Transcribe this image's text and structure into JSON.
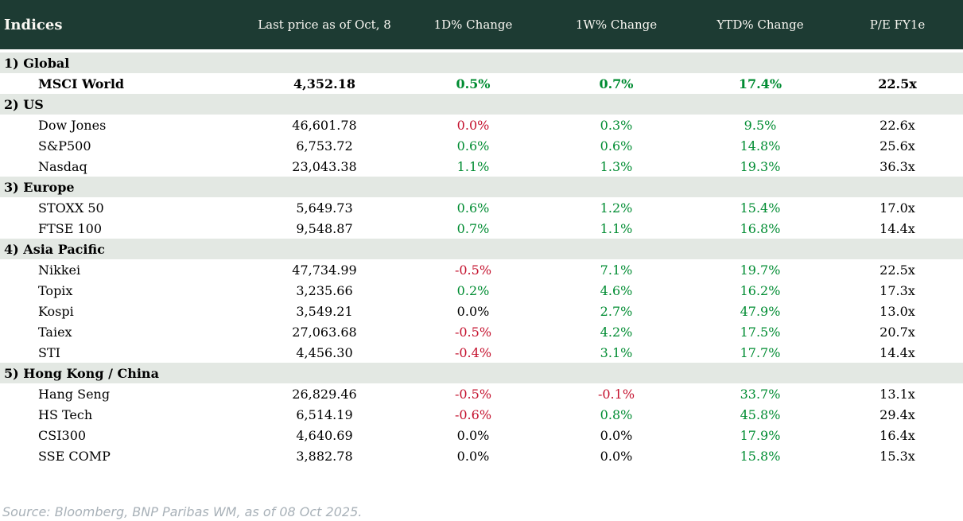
{
  "colors": {
    "header_bg": "#1D3B33",
    "header_text": "#FAF8F3",
    "section_bg": "#E3E8E3",
    "positive": "#008C32",
    "negative": "#C4122E",
    "neutral": "#000000",
    "source_text": "#A8B1B8"
  },
  "chart_data": {
    "type": "table",
    "title": "Indices",
    "columns": [
      "Indices",
      "Last price as of Oct, 8",
      "1D% Change",
      "1W% Change",
      "YTD% Change",
      "P/E FY1e"
    ],
    "sections": [
      {
        "title": "1) Global",
        "rows": [
          {
            "name": "MSCI World",
            "price": "4,352.18",
            "d1": "0.5%",
            "d1_dir": "up",
            "w1": "0.7%",
            "w1_dir": "up",
            "ytd": "17.4%",
            "ytd_dir": "up",
            "pe": "22.5x"
          }
        ]
      },
      {
        "title": "2) US",
        "rows": [
          {
            "name": "Dow Jones",
            "price": "46,601.78",
            "d1": "0.0%",
            "d1_dir": "down",
            "w1": "0.3%",
            "w1_dir": "up",
            "ytd": "9.5%",
            "ytd_dir": "up",
            "pe": "22.6x"
          },
          {
            "name": "S&P500",
            "price": "6,753.72",
            "d1": "0.6%",
            "d1_dir": "up",
            "w1": "0.6%",
            "w1_dir": "up",
            "ytd": "14.8%",
            "ytd_dir": "up",
            "pe": "25.6x"
          },
          {
            "name": "Nasdaq",
            "price": "23,043.38",
            "d1": "1.1%",
            "d1_dir": "up",
            "w1": "1.3%",
            "w1_dir": "up",
            "ytd": "19.3%",
            "ytd_dir": "up",
            "pe": "36.3x"
          }
        ]
      },
      {
        "title": "3) Europe",
        "rows": [
          {
            "name": "STOXX 50",
            "price": "5,649.73",
            "d1": "0.6%",
            "d1_dir": "up",
            "w1": "1.2%",
            "w1_dir": "up",
            "ytd": "15.4%",
            "ytd_dir": "up",
            "pe": "17.0x"
          },
          {
            "name": "FTSE 100",
            "price": "9,548.87",
            "d1": "0.7%",
            "d1_dir": "up",
            "w1": "1.1%",
            "w1_dir": "up",
            "ytd": "16.8%",
            "ytd_dir": "up",
            "pe": "14.4x"
          }
        ]
      },
      {
        "title": "4) Asia Pacific",
        "rows": [
          {
            "name": "Nikkei",
            "price": "47,734.99",
            "d1": "-0.5%",
            "d1_dir": "down",
            "w1": "7.1%",
            "w1_dir": "up",
            "ytd": "19.7%",
            "ytd_dir": "up",
            "pe": "22.5x"
          },
          {
            "name": "Topix",
            "price": "3,235.66",
            "d1": "0.2%",
            "d1_dir": "up",
            "w1": "4.6%",
            "w1_dir": "up",
            "ytd": "16.2%",
            "ytd_dir": "up",
            "pe": "17.3x"
          },
          {
            "name": "Kospi",
            "price": "3,549.21",
            "d1": "0.0%",
            "d1_dir": "flat",
            "w1": "2.7%",
            "w1_dir": "up",
            "ytd": "47.9%",
            "ytd_dir": "up",
            "pe": "13.0x"
          },
          {
            "name": "Taiex",
            "price": "27,063.68",
            "d1": "-0.5%",
            "d1_dir": "down",
            "w1": "4.2%",
            "w1_dir": "up",
            "ytd": "17.5%",
            "ytd_dir": "up",
            "pe": "20.7x"
          },
          {
            "name": "STI",
            "price": "4,456.30",
            "d1": "-0.4%",
            "d1_dir": "down",
            "w1": "3.1%",
            "w1_dir": "up",
            "ytd": "17.7%",
            "ytd_dir": "up",
            "pe": "14.4x"
          }
        ]
      },
      {
        "title": "5) Hong Kong / China",
        "rows": [
          {
            "name": "Hang Seng",
            "price": "26,829.46",
            "d1": "-0.5%",
            "d1_dir": "down",
            "w1": "-0.1%",
            "w1_dir": "down",
            "ytd": "33.7%",
            "ytd_dir": "up",
            "pe": "13.1x"
          },
          {
            "name": "HS Tech",
            "price": "6,514.19",
            "d1": "-0.6%",
            "d1_dir": "down",
            "w1": "0.8%",
            "w1_dir": "up",
            "ytd": "45.8%",
            "ytd_dir": "up",
            "pe": "29.4x"
          },
          {
            "name": "CSI300",
            "price": "4,640.69",
            "d1": "0.0%",
            "d1_dir": "flat",
            "w1": "0.0%",
            "w1_dir": "flat",
            "ytd": "17.9%",
            "ytd_dir": "up",
            "pe": "16.4x"
          },
          {
            "name": "SSE COMP",
            "price": "3,882.78",
            "d1": "0.0%",
            "d1_dir": "flat",
            "w1": "0.0%",
            "w1_dir": "flat",
            "ytd": "15.8%",
            "ytd_dir": "up",
            "pe": "15.3x"
          }
        ]
      }
    ]
  },
  "footer": {
    "source": "Source: Bloomberg, BNP Paribas WM, as of 08 Oct 2025."
  }
}
